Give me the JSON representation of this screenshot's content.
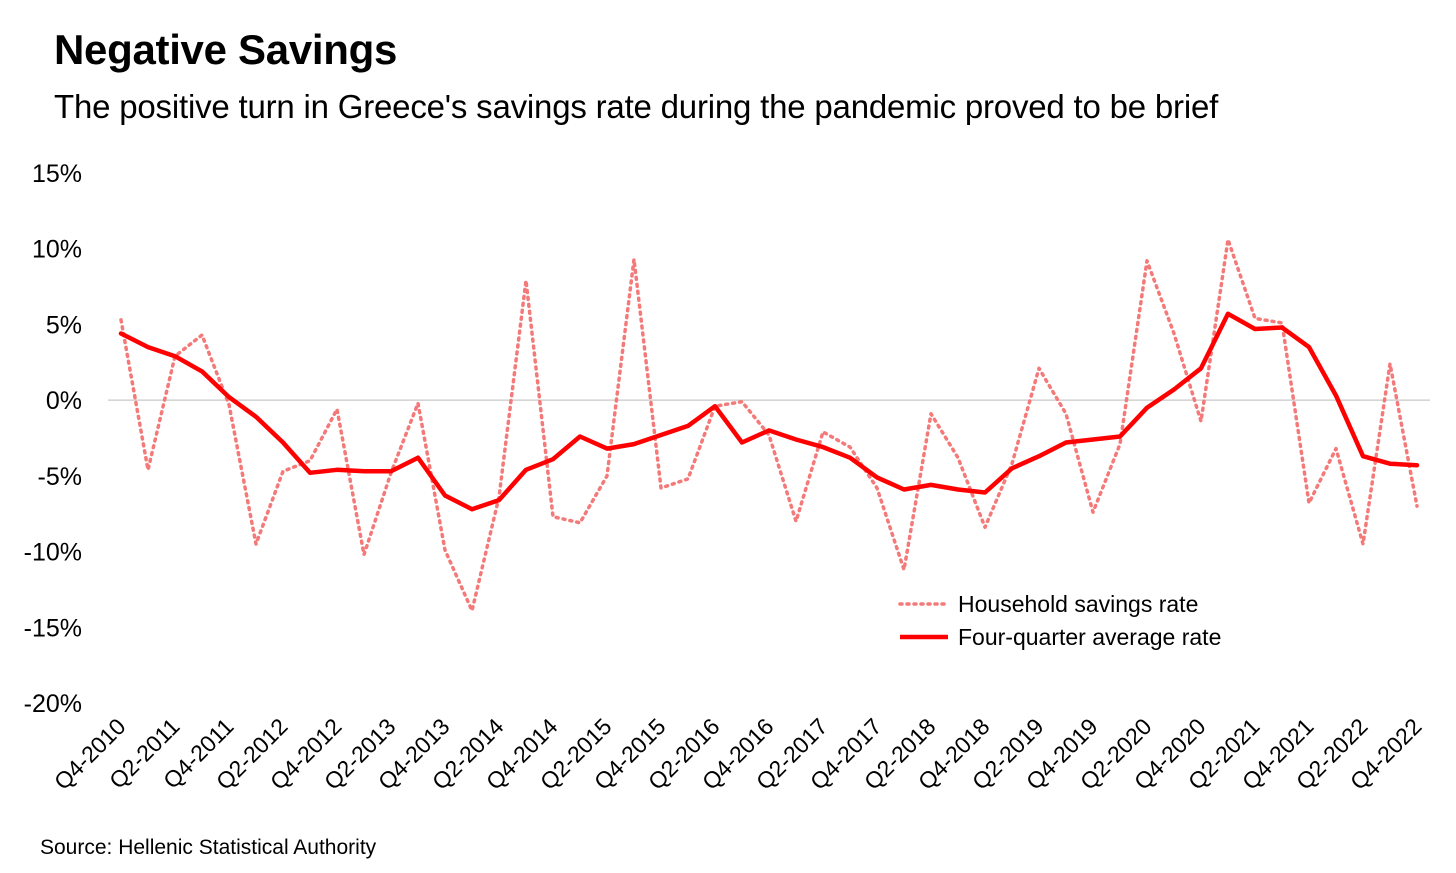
{
  "chart_data": {
    "type": "line",
    "title": "Negative Savings",
    "subtitle": "The positive turn in Greece's savings rate during the pandemic proved to be brief",
    "source": "Source: Hellenic Statistical Authority",
    "ylim": [
      -20,
      15
    ],
    "yticks": [
      "15%",
      "10%",
      "5%",
      "0%",
      "-5%",
      "-10%",
      "-15%",
      "-20%"
    ],
    "ytick_values": [
      15,
      10,
      5,
      0,
      -5,
      -10,
      -15,
      -20
    ],
    "xtick_labels": [
      "Q4-2010",
      "Q2-2011",
      "Q4-2011",
      "Q2-2012",
      "Q4-2012",
      "Q2-2013",
      "Q4-2013",
      "Q2-2014",
      "Q4-2014",
      "Q2-2015",
      "Q4-2015",
      "Q2-2016",
      "Q4-2016",
      "Q2-2017",
      "Q4-2017",
      "Q2-2018",
      "Q4-2018",
      "Q2-2019",
      "Q4-2019",
      "Q2-2020",
      "Q4-2020",
      "Q2-2021",
      "Q4-2021",
      "Q2-2022",
      "Q4-2022"
    ],
    "x": [
      "Q4-2010",
      "Q1-2011",
      "Q2-2011",
      "Q3-2011",
      "Q4-2011",
      "Q1-2012",
      "Q2-2012",
      "Q3-2012",
      "Q4-2012",
      "Q1-2013",
      "Q2-2013",
      "Q3-2013",
      "Q4-2013",
      "Q1-2014",
      "Q2-2014",
      "Q3-2014",
      "Q4-2014",
      "Q1-2015",
      "Q2-2015",
      "Q3-2015",
      "Q4-2015",
      "Q1-2016",
      "Q2-2016",
      "Q3-2016",
      "Q4-2016",
      "Q1-2017",
      "Q2-2017",
      "Q3-2017",
      "Q4-2017",
      "Q1-2018",
      "Q2-2018",
      "Q3-2018",
      "Q4-2018",
      "Q1-2019",
      "Q2-2019",
      "Q3-2019",
      "Q4-2019",
      "Q1-2020",
      "Q2-2020",
      "Q3-2020",
      "Q4-2020",
      "Q1-2021",
      "Q2-2021",
      "Q3-2021",
      "Q4-2021",
      "Q1-2022",
      "Q2-2022",
      "Q3-2022",
      "Q4-2022"
    ],
    "grid": false,
    "zero_line": true,
    "legend_position": "lower-right",
    "series": [
      {
        "name": "Household savings rate",
        "style": "dotted",
        "color": "#f47a7a",
        "values": [
          5.3,
          -4.6,
          2.9,
          4.3,
          -0.3,
          -9.5,
          -4.7,
          -4.0,
          -0.6,
          -10.2,
          -4.8,
          -0.2,
          -9.9,
          -13.9,
          -6.4,
          7.9,
          -7.7,
          -8.1,
          -5.0,
          9.3,
          -5.8,
          -5.2,
          -0.4,
          -0.1,
          -2.3,
          -8.0,
          -2.1,
          -3.1,
          -5.8,
          -11.2,
          -0.9,
          -3.8,
          -8.4,
          -4.2,
          2.1,
          -0.9,
          -7.4,
          -2.9,
          9.2,
          4.4,
          -1.4,
          10.6,
          5.4,
          5.1,
          -6.8,
          -3.2,
          -9.5,
          2.4,
          -7.0
        ]
      },
      {
        "name": "Four-quarter average rate",
        "style": "solid",
        "color": "#ff0000",
        "values": [
          4.4,
          3.5,
          2.9,
          1.9,
          0.2,
          -1.1,
          -2.8,
          -4.8,
          -4.6,
          -4.7,
          -4.7,
          -3.8,
          -6.3,
          -7.2,
          -6.6,
          -4.6,
          -3.9,
          -2.4,
          -3.2,
          -2.9,
          -2.3,
          -1.7,
          -0.4,
          -2.8,
          -2.0,
          -2.6,
          -3.1,
          -3.8,
          -5.1,
          -5.9,
          -5.6,
          -5.9,
          -6.1,
          -4.5,
          -3.7,
          -2.8,
          -2.6,
          -2.4,
          -0.5,
          0.7,
          2.1,
          5.7,
          4.7,
          4.8,
          3.5,
          0.3,
          -3.7,
          -4.2,
          -4.3
        ]
      }
    ]
  }
}
